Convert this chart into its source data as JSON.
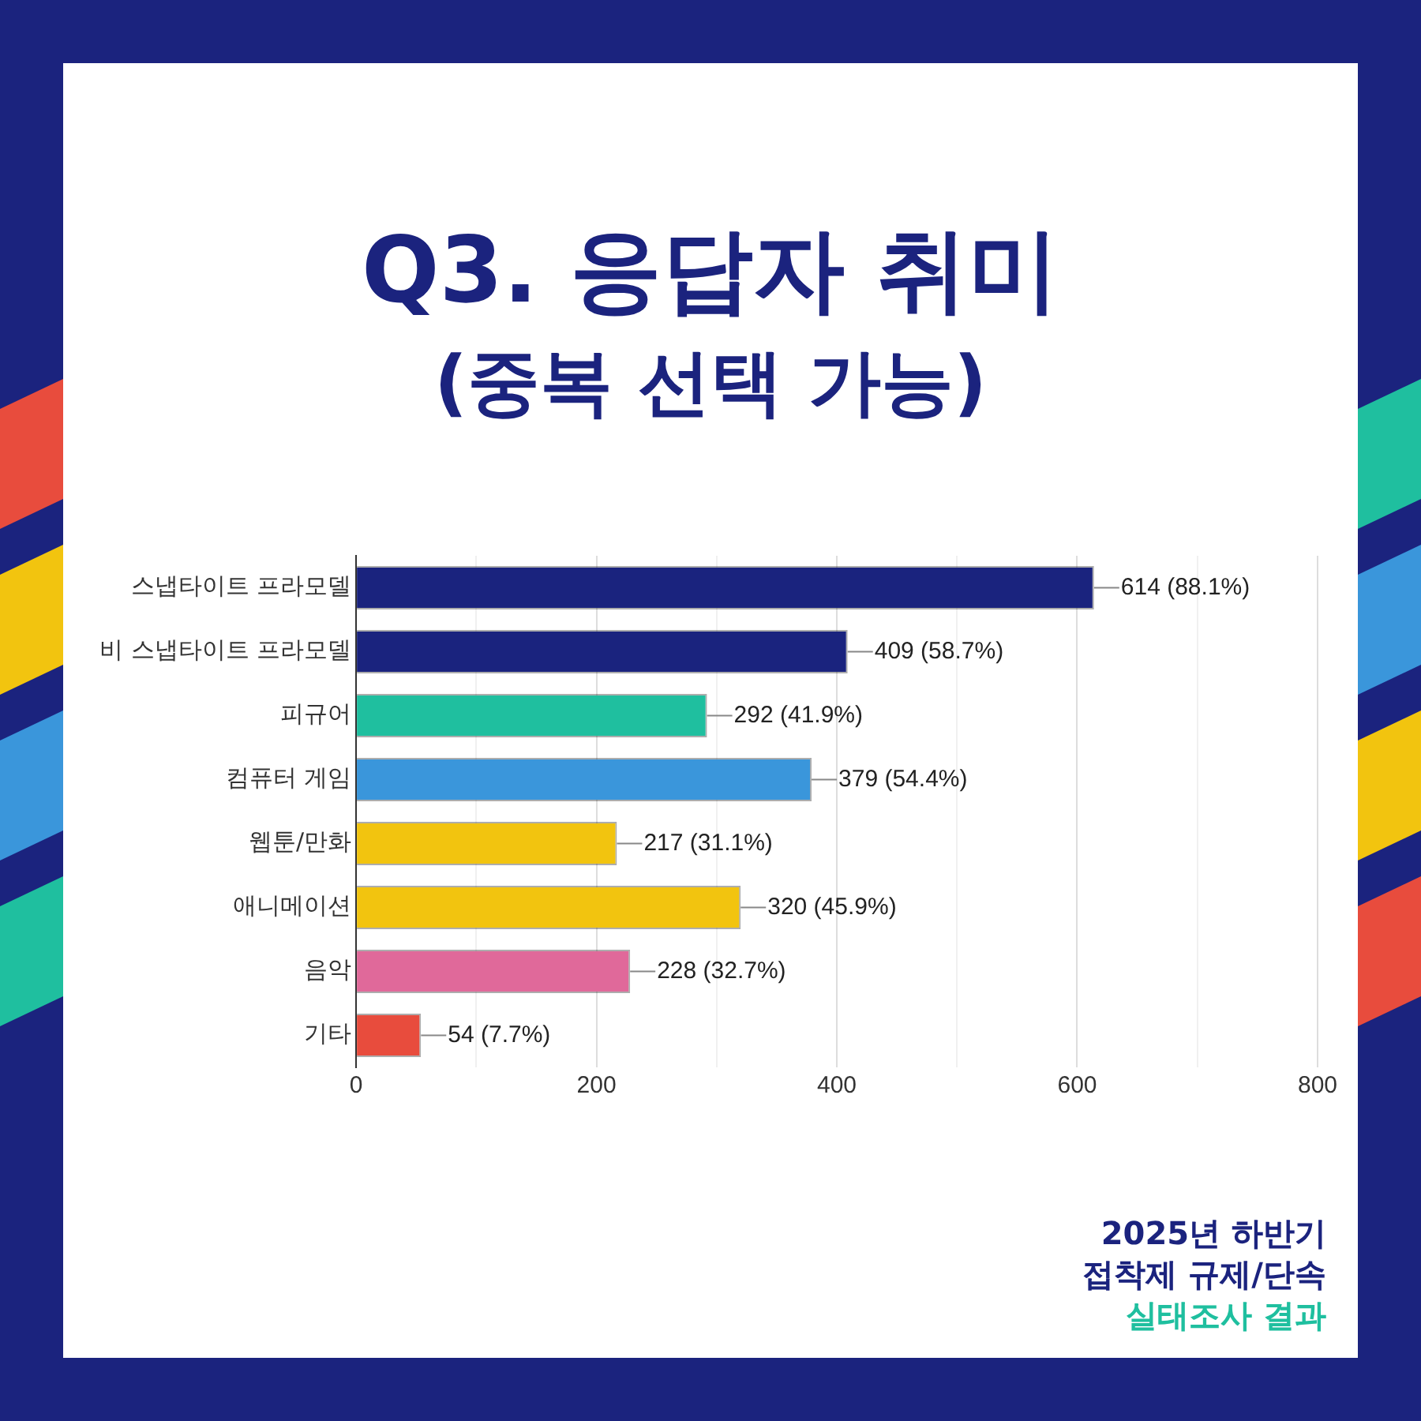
{
  "chart_data": {
    "type": "bar",
    "orientation": "horizontal",
    "title": "Q3. 응답자 취미",
    "subtitle": "(중복 선택 가능)",
    "categories": [
      "스냅타이트 프라모델",
      "비 스냅타이트 프라모델",
      "피규어",
      "컴퓨터 게임",
      "웹툰/만화",
      "애니메이션",
      "음악",
      "기타"
    ],
    "values": [
      614,
      409,
      292,
      379,
      217,
      320,
      228,
      54
    ],
    "colors": [
      "#1a237e",
      "#1a237e",
      "#1fbf9f",
      "#3a96db",
      "#f2c40f",
      "#f2c40f",
      "#e0699a",
      "#e84c3d"
    ],
    "value_labels": [
      "614 (88.1%)",
      "409 (58.7%)",
      "292 (41.9%)",
      "379 (54.4%)",
      "217 (31.1%)",
      "320 (45.9%)",
      "228 (32.7%)",
      "54 (7.7%)"
    ],
    "xlim": [
      0,
      800
    ],
    "xticks": [
      0,
      {
        "value": 100,
        "label": null
      },
      200,
      {
        "value": 300,
        "label": null
      },
      400,
      {
        "value": 500,
        "label": null
      },
      600,
      {
        "value": 700,
        "label": null
      },
      800
    ],
    "grid": "x",
    "annotations": [
      "2025년 하반기",
      "접착제 규제/단속",
      "실태조사 결과"
    ]
  }
}
